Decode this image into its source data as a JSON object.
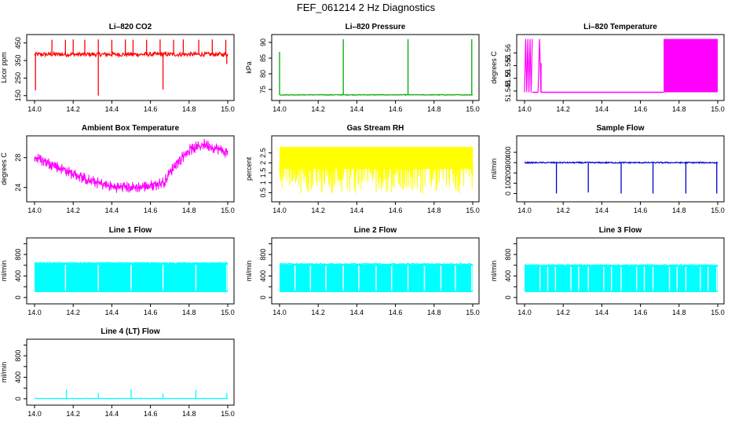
{
  "figure_title": "FEF_061214  2 Hz Diagnostics",
  "chart_data": [
    {
      "type": "line",
      "title": "Li–820 CO2",
      "ylabel": "Licor ppm",
      "color": "#ff0000",
      "xlim": [
        14.0,
        15.0
      ],
      "ylim": [
        140,
        480
      ],
      "yticks": [
        150,
        250,
        350,
        450
      ],
      "xticks": [
        "14.0",
        "14.2",
        "14.4",
        "14.6",
        "14.8",
        "15.0"
      ],
      "style": "base",
      "base": 385,
      "noise": 12,
      "lo": 360,
      "hi": 400,
      "spikes_up": [
        [
          14.09,
          468
        ],
        [
          14.16,
          468
        ],
        [
          14.2,
          470
        ],
        [
          14.26,
          468
        ],
        [
          14.33,
          470
        ],
        [
          14.4,
          468
        ],
        [
          14.47,
          470
        ],
        [
          14.51,
          468
        ],
        [
          14.58,
          468
        ],
        [
          14.65,
          470
        ],
        [
          14.72,
          468
        ],
        [
          14.77,
          470
        ],
        [
          14.85,
          468
        ],
        [
          14.92,
          470
        ],
        [
          14.99,
          468
        ]
      ],
      "spikes_down": [
        [
          14.005,
          180
        ],
        [
          14.33,
          150
        ],
        [
          14.665,
          185
        ],
        [
          14.995,
          330
        ]
      ]
    },
    {
      "type": "line",
      "title": "Li–820 Pressure",
      "ylabel": "kPa",
      "color": "#00aa00",
      "xlim": [
        14.0,
        15.0
      ],
      "ylim": [
        72.5,
        91.5
      ],
      "yticks": [
        75,
        80,
        85,
        90
      ],
      "xticks": [
        "14.0",
        "14.2",
        "14.4",
        "14.6",
        "14.8",
        "15.0"
      ],
      "style": "base",
      "base": 73.3,
      "noise": 0.1,
      "lo": 73.0,
      "hi": 73.6,
      "spikes_up": [
        [
          14.0,
          87
        ],
        [
          14.33,
          91
        ],
        [
          14.665,
          91
        ],
        [
          14.995,
          91
        ]
      ],
      "spikes_down": []
    },
    {
      "type": "line",
      "title": "Li–820 Temperature",
      "ylabel": "degrees C",
      "color": "#ff00ff",
      "xlim": [
        14.0,
        15.0
      ],
      "ylim": [
        51.5425,
        51.566
      ],
      "yticks": [
        51.545,
        51.55,
        51.555,
        51.56
      ],
      "ytick_labels": [
        "51.545",
        "51.55",
        "51.555",
        "51.56"
      ],
      "xticks": [
        "14.0",
        "14.2",
        "14.4",
        "14.6",
        "14.8",
        "15.0"
      ],
      "style": "steps",
      "segments": [
        [
          14.0,
          14.04,
          "band"
        ],
        [
          14.04,
          14.07,
          "low"
        ],
        [
          14.07,
          14.085,
          "band"
        ],
        [
          14.085,
          14.72,
          "low"
        ],
        [
          14.72,
          15.0,
          "fill"
        ]
      ],
      "low": 51.5445,
      "high": 51.5655
    },
    {
      "type": "line",
      "title": "Ambient Box Temperature",
      "ylabel": "degrees C",
      "color": "#ff00ff",
      "xlim": [
        14.0,
        15.0
      ],
      "ylim": [
        22.5,
        30.5
      ],
      "yticks": [
        24,
        28
      ],
      "xticks": [
        "14.0",
        "14.2",
        "14.4",
        "14.6",
        "14.8",
        "15.0"
      ],
      "style": "curve",
      "curve": [
        [
          14.0,
          28.0
        ],
        [
          14.1,
          27.0
        ],
        [
          14.2,
          25.8
        ],
        [
          14.3,
          24.8
        ],
        [
          14.4,
          24.1
        ],
        [
          14.5,
          24.0
        ],
        [
          14.6,
          24.2
        ],
        [
          14.67,
          24.7
        ],
        [
          14.72,
          26.8
        ],
        [
          14.8,
          29.0
        ],
        [
          14.88,
          29.8
        ],
        [
          14.95,
          29.2
        ],
        [
          15.0,
          28.6
        ]
      ],
      "amp": 0.8
    },
    {
      "type": "line",
      "title": "Gas Stream RH",
      "ylabel": "percent",
      "color": "#ffff00",
      "xlim": [
        14.0,
        15.0
      ],
      "ylim": [
        0.2,
        3.2
      ],
      "yticks": [
        0.5,
        1.0,
        1.5,
        2.0,
        2.5
      ],
      "ytick_labels": [
        "0.5",
        "1",
        "1.5",
        "2",
        "2.5"
      ],
      "xticks": [
        "14.0",
        "14.2",
        "14.4",
        "14.6",
        "14.8",
        "15.0"
      ],
      "style": "band",
      "lo": 0.45,
      "hi": 2.85,
      "dense_lo": 1.7,
      "dense_hi": 2.8
    },
    {
      "type": "line",
      "title": "Sample Flow",
      "ylabel": "ml/min",
      "color": "#0000cc",
      "xlim": [
        14.0,
        15.0
      ],
      "ylim": [
        -50,
        530
      ],
      "yticks": [
        0,
        100,
        200,
        300,
        400
      ],
      "xticks": [
        "14.0",
        "14.2",
        "14.4",
        "14.6",
        "14.8",
        "15.0"
      ],
      "style": "base",
      "base": 300,
      "noise": 6,
      "lo": 285,
      "hi": 315,
      "spikes_up": [],
      "spikes_down": [
        [
          14.165,
          0
        ],
        [
          14.33,
          10
        ],
        [
          14.5,
          0
        ],
        [
          14.665,
          0
        ],
        [
          14.835,
          0
        ],
        [
          14.995,
          0
        ]
      ]
    },
    {
      "type": "line",
      "title": "Line 1 Flow",
      "ylabel": "ml/min",
      "color": "#00ffff",
      "xlim": [
        14.0,
        15.0
      ],
      "ylim": [
        -60,
        1050
      ],
      "yticks": [
        0,
        400,
        800
      ],
      "extra_yticks": [
        200,
        600,
        1000
      ],
      "xticks": [
        "14.0",
        "14.2",
        "14.4",
        "14.6",
        "14.8",
        "15.0"
      ],
      "style": "square",
      "lo": 100,
      "hi": 640,
      "gaps": [
        14.16,
        14.33,
        14.5,
        14.665,
        14.835,
        14.995
      ]
    },
    {
      "type": "line",
      "title": "Line 2 Flow",
      "ylabel": "ml/min",
      "color": "#00ffff",
      "xlim": [
        14.0,
        15.0
      ],
      "ylim": [
        -60,
        1050
      ],
      "yticks": [
        0,
        400,
        800
      ],
      "extra_yticks": [
        200,
        600,
        1000
      ],
      "xticks": [
        "14.0",
        "14.2",
        "14.4",
        "14.6",
        "14.8",
        "15.0"
      ],
      "style": "square",
      "lo": 100,
      "hi": 620,
      "gaps": [
        14.16,
        14.33,
        14.5,
        14.665,
        14.835,
        14.995,
        14.08,
        14.24,
        14.41,
        14.58,
        14.75,
        14.91
      ]
    },
    {
      "type": "line",
      "title": "Line 3 Flow",
      "ylabel": "ml/min",
      "color": "#00ffff",
      "xlim": [
        14.0,
        15.0
      ],
      "ylim": [
        -60,
        1050
      ],
      "yticks": [
        0,
        400,
        800
      ],
      "extra_yticks": [
        200,
        600,
        1000
      ],
      "xticks": [
        "14.0",
        "14.2",
        "14.4",
        "14.6",
        "14.8",
        "15.0"
      ],
      "style": "square",
      "lo": 100,
      "hi": 600,
      "gaps": [
        14.16,
        14.33,
        14.5,
        14.665,
        14.835,
        14.995,
        14.08,
        14.12,
        14.24,
        14.28,
        14.41,
        14.45,
        14.58,
        14.62,
        14.75,
        14.79,
        14.91,
        14.95
      ]
    },
    {
      "type": "line",
      "title": "Line 4 (LT) Flow",
      "ylabel": "ml/min",
      "color": "#00ffff",
      "xlim": [
        14.0,
        15.0
      ],
      "ylim": [
        -60,
        1050
      ],
      "yticks": [
        0,
        400,
        800
      ],
      "extra_yticks": [
        200,
        600,
        1000
      ],
      "xticks": [
        "14.0",
        "14.2",
        "14.4",
        "14.6",
        "14.8",
        "15.0"
      ],
      "style": "base",
      "base": 5,
      "noise": 2,
      "lo": 0,
      "hi": 10,
      "spikes_up": [
        [
          14.165,
          170
        ],
        [
          14.33,
          110
        ],
        [
          14.5,
          180
        ],
        [
          14.665,
          100
        ],
        [
          14.835,
          170
        ],
        [
          14.995,
          110
        ]
      ],
      "spikes_down": []
    }
  ]
}
